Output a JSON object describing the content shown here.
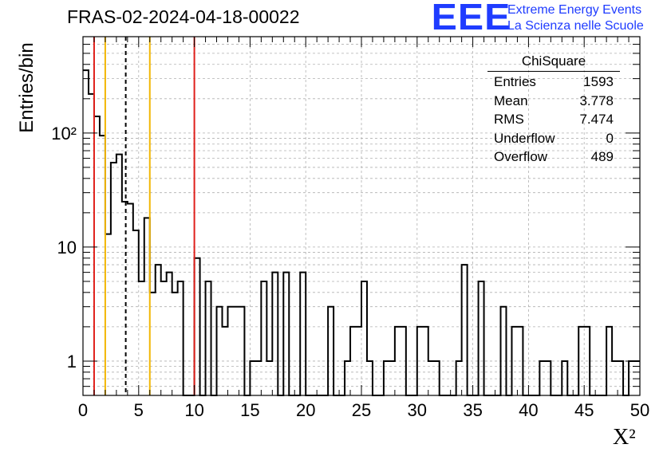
{
  "header": {
    "title": "FRAS-02-2024-04-18-00022",
    "logo_text": "EEE",
    "logo_line1": "Extreme Energy Events",
    "logo_line2": "La Scienza nelle Scuole"
  },
  "stats": {
    "name": "ChiSquare",
    "rows": [
      {
        "label": "Entries",
        "value": "1593"
      },
      {
        "label": "Mean",
        "value": "3.778"
      },
      {
        "label": "RMS",
        "value": "7.474"
      },
      {
        "label": "Underflow",
        "value": "0"
      },
      {
        "label": "Overflow",
        "value": "489"
      }
    ]
  },
  "colors": {
    "accent": "#1f3cff",
    "red_line": "#e0201b",
    "yellow_line": "#f2b705",
    "histogram": "#000000",
    "grid": "#b0b0b0"
  },
  "chart_data": {
    "type": "histogram",
    "title": "FRAS-02-2024-04-18-00022",
    "xlabel": "X²",
    "ylabel": "Entries/bin",
    "xlim": [
      0,
      50
    ],
    "ylim": [
      0.5,
      700
    ],
    "yscale": "log",
    "grid": true,
    "bin_width": 0.5,
    "x_ticks": [
      0,
      5,
      10,
      15,
      20,
      25,
      30,
      35,
      40,
      45,
      50
    ],
    "x_tick_labels": [
      "0",
      "5",
      "10",
      "15",
      "20",
      "25",
      "30",
      "35",
      "40",
      "45",
      "50"
    ],
    "y_ticks": [
      1,
      10,
      100
    ],
    "y_tick_labels": [
      "1",
      "10",
      "10²"
    ],
    "bin_values": [
      355,
      220,
      140,
      95,
      13,
      55,
      65,
      25,
      24,
      14,
      5,
      18,
      4,
      7,
      5,
      6,
      4,
      5,
      0,
      0,
      8,
      0,
      5,
      0,
      3,
      2,
      3,
      3,
      3,
      0,
      1,
      1,
      5,
      1,
      6,
      0,
      6,
      0,
      0,
      6,
      0,
      0,
      0,
      0,
      3,
      0,
      0,
      1,
      2,
      2,
      5,
      1,
      0,
      0,
      1,
      1,
      2,
      2,
      0,
      0,
      2,
      2,
      1,
      1,
      0,
      0,
      0,
      1,
      7,
      0,
      0,
      5,
      0,
      0,
      0,
      3,
      0,
      2,
      2,
      0,
      0,
      0,
      1,
      1,
      0,
      0,
      1,
      0,
      0,
      2,
      2,
      0,
      0,
      0,
      2,
      1,
      1,
      0,
      1,
      1
    ],
    "vertical_lines": [
      {
        "x": 1,
        "color": "red",
        "style": "solid"
      },
      {
        "x": 2,
        "color": "yellow",
        "style": "solid"
      },
      {
        "x": 3.84,
        "color": "black",
        "style": "dashed"
      },
      {
        "x": 6,
        "color": "yellow",
        "style": "solid"
      },
      {
        "x": 10,
        "color": "red",
        "style": "solid"
      }
    ]
  }
}
